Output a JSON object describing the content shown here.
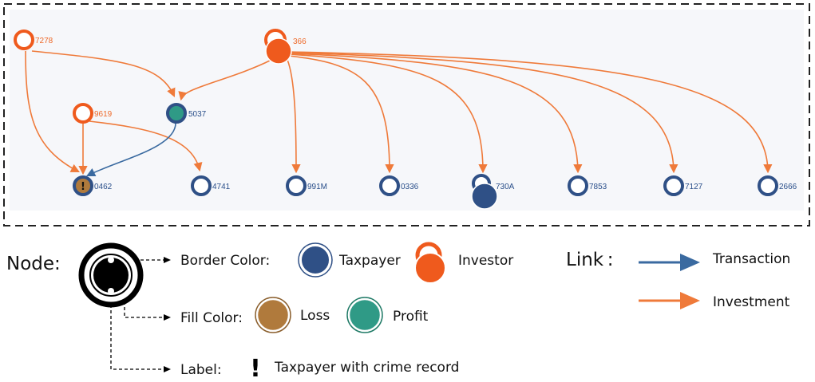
{
  "colors": {
    "taxpayer": "#2f5086",
    "investor": "#ef5a1d",
    "loss": "#b07a3c",
    "profit": "#2f9a86",
    "transaction_link": "#3a6aa0",
    "investment_link": "#ef7a3a"
  },
  "graph": {
    "nodes": [
      {
        "label": "7278",
        "type": "investor"
      },
      {
        "label": "366",
        "type": "investor"
      },
      {
        "label": "9619",
        "type": "investor"
      },
      {
        "label": "5037",
        "type": "taxpayer"
      },
      {
        "label": "0462",
        "type": "taxpayer"
      },
      {
        "label": "4741",
        "type": "taxpayer"
      },
      {
        "label": "991M",
        "type": "taxpayer"
      },
      {
        "label": "0336",
        "type": "taxpayer"
      },
      {
        "label": "730A",
        "type": "taxpayer"
      },
      {
        "label": "7853",
        "type": "taxpayer"
      },
      {
        "label": "7127",
        "type": "taxpayer"
      },
      {
        "label": "2666",
        "type": "taxpayer"
      }
    ]
  },
  "legend": {
    "node_heading": "Node:",
    "border_color_label": "Border Color:",
    "taxpayer_label": "Taxpayer",
    "investor_label": "Investor",
    "fill_color_label": "Fill Color:",
    "loss_label": "Loss",
    "profit_label": "Profit",
    "label_label": "Label:",
    "crime_glyph": "!",
    "crime_label": "Taxpayer with crime record",
    "link_heading": "Link :",
    "transaction_label": "Transaction",
    "investment_label": "Investment"
  }
}
